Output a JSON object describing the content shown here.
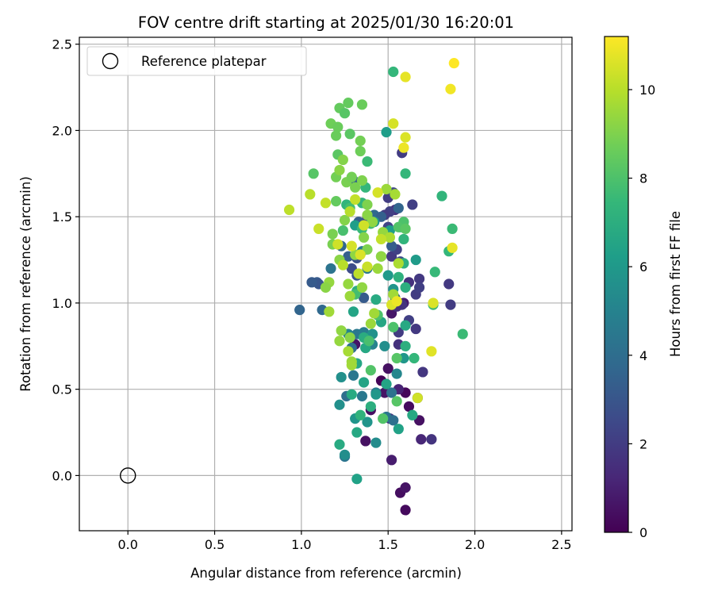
{
  "chart_data": {
    "type": "scatter",
    "title": "FOV centre drift starting at 2025/01/30 16:20:01",
    "xlabel": "Angular distance from reference (arcmin)",
    "ylabel": "Rotation from reference (arcmin)",
    "xlim": [
      -0.28,
      2.56
    ],
    "ylim": [
      -0.32,
      2.54
    ],
    "xticks": [
      "0.0",
      "0.5",
      "1.0",
      "1.5",
      "2.0",
      "2.5"
    ],
    "yticks": [
      "0.0",
      "0.5",
      "1.0",
      "1.5",
      "2.0",
      "2.5"
    ],
    "grid": true,
    "legend": {
      "placement": "upper-left",
      "entries": [
        "Reference platepar"
      ]
    },
    "reference_point": {
      "x": 0.0,
      "y": 0.0
    },
    "colorbar": {
      "label": "Hours from first FF file",
      "min": 0,
      "max": 11.2,
      "ticks": [
        "0",
        "2",
        "4",
        "6",
        "8",
        "10"
      ],
      "colormap": [
        "#440154",
        "#482878",
        "#3e4989",
        "#31688e",
        "#26828e",
        "#1f9e89",
        "#35b779",
        "#6ece58",
        "#b5de2b",
        "#fde725"
      ]
    },
    "points": [
      [
        1.6,
        -0.2,
        0.3
      ],
      [
        1.57,
        -0.1,
        0.4
      ],
      [
        1.6,
        -0.07,
        0.6
      ],
      [
        1.52,
        0.09,
        0.9
      ],
      [
        1.37,
        0.2,
        0.5
      ],
      [
        1.6,
        0.48,
        0.2
      ],
      [
        1.48,
        0.48,
        0.6
      ],
      [
        1.46,
        0.55,
        0.1
      ],
      [
        1.62,
        0.4,
        0.3
      ],
      [
        1.68,
        0.32,
        0.5
      ],
      [
        1.4,
        0.38,
        0.4
      ],
      [
        1.56,
        0.5,
        1.1
      ],
      [
        1.5,
        0.62,
        0.5
      ],
      [
        1.52,
        0.94,
        0.7
      ],
      [
        1.59,
        1.0,
        0.9
      ],
      [
        1.67,
        0.45,
        0.8
      ],
      [
        1.31,
        0.76,
        0.6
      ],
      [
        1.56,
        0.76,
        1.6
      ],
      [
        1.69,
        0.21,
        1.2
      ],
      [
        1.75,
        0.21,
        1.7
      ],
      [
        1.51,
        0.33,
        1.9
      ],
      [
        1.56,
        0.83,
        2.0
      ],
      [
        1.62,
        0.9,
        2.1
      ],
      [
        1.58,
        0.99,
        1.7
      ],
      [
        1.66,
        1.05,
        2.0
      ],
      [
        1.62,
        1.12,
        1.6
      ],
      [
        1.68,
        1.14,
        1.9
      ],
      [
        1.7,
        0.6,
        1.8
      ],
      [
        1.66,
        0.85,
        1.9
      ],
      [
        1.55,
        0.98,
        1.5
      ],
      [
        1.52,
        1.27,
        1.9
      ],
      [
        1.55,
        1.31,
        2.2
      ],
      [
        1.5,
        1.61,
        2.0
      ],
      [
        1.54,
        1.54,
        1.6
      ],
      [
        1.51,
        1.53,
        2.1
      ],
      [
        1.48,
        1.51,
        2.0
      ],
      [
        1.58,
        1.87,
        2.0
      ],
      [
        1.53,
        1.64,
        2.4
      ],
      [
        1.64,
        1.57,
        2.1
      ],
      [
        1.68,
        1.09,
        2.1
      ],
      [
        1.85,
        1.11,
        1.9
      ],
      [
        1.86,
        0.99,
        2.0
      ],
      [
        1.38,
        1.49,
        2.1
      ],
      [
        1.5,
        1.44,
        2.3
      ],
      [
        1.57,
        1.24,
        2.5
      ],
      [
        1.09,
        1.12,
        3.2
      ],
      [
        1.1,
        1.11,
        3.0
      ],
      [
        1.06,
        1.12,
        3.2
      ],
      [
        0.99,
        0.96,
        3.6
      ],
      [
        1.12,
        0.96,
        3.8
      ],
      [
        1.29,
        1.2,
        2.6
      ],
      [
        1.32,
        1.26,
        2.8
      ],
      [
        1.32,
        1.16,
        3.0
      ],
      [
        1.36,
        1.03,
        3.2
      ],
      [
        1.3,
        1.71,
        3.5
      ],
      [
        1.23,
        1.33,
        3.7
      ],
      [
        1.27,
        1.27,
        3.4
      ],
      [
        1.52,
        1.33,
        3.3
      ],
      [
        1.33,
        1.47,
        3.2
      ],
      [
        1.56,
        1.55,
        3.6
      ],
      [
        1.42,
        1.51,
        3.8
      ],
      [
        1.46,
        1.5,
        3.4
      ],
      [
        1.54,
        1.03,
        3.8
      ],
      [
        1.26,
        0.46,
        4.0
      ],
      [
        1.52,
        0.48,
        4.2
      ],
      [
        1.49,
        0.34,
        4.4
      ],
      [
        1.43,
        0.48,
        4.6
      ],
      [
        1.35,
        0.46,
        4.5
      ],
      [
        1.53,
        0.32,
        4.1
      ],
      [
        1.3,
        0.58,
        4.4
      ],
      [
        1.25,
        0.11,
        4.3
      ],
      [
        1.32,
        0.82,
        4.5
      ],
      [
        1.36,
        0.83,
        4.7
      ],
      [
        1.29,
        0.74,
        4.0
      ],
      [
        1.38,
        1.2,
        4.6
      ],
      [
        1.35,
        1.3,
        4.7
      ],
      [
        1.17,
        1.2,
        4.3
      ],
      [
        1.41,
        0.76,
        5.0
      ],
      [
        1.55,
        0.59,
        5.2
      ],
      [
        1.27,
        0.82,
        5.0
      ],
      [
        1.37,
        0.74,
        5.3
      ],
      [
        1.23,
        0.57,
        5.6
      ],
      [
        1.31,
        0.33,
        5.8
      ],
      [
        1.22,
        0.41,
        5.6
      ],
      [
        1.43,
        0.19,
        5.4
      ],
      [
        1.25,
        0.12,
        5.5
      ],
      [
        1.38,
        0.31,
        5.8
      ],
      [
        1.48,
        0.75,
        5.5
      ],
      [
        1.59,
        0.68,
        5.9
      ],
      [
        1.41,
        0.82,
        5.7
      ],
      [
        1.43,
        0.47,
        5.9
      ],
      [
        1.5,
        1.16,
        6.0
      ],
      [
        1.66,
        1.25,
        6.1
      ],
      [
        1.51,
        1.42,
        6.2
      ],
      [
        1.53,
        1.08,
        5.8
      ],
      [
        1.42,
        1.47,
        6.0
      ],
      [
        1.31,
        1.45,
        6.2
      ],
      [
        1.49,
        1.99,
        6.2
      ],
      [
        1.32,
        -0.02,
        6.4
      ],
      [
        1.56,
        0.27,
        6.4
      ],
      [
        1.64,
        0.35,
        6.7
      ],
      [
        1.22,
        0.18,
        6.8
      ],
      [
        1.4,
        0.4,
        7.0
      ],
      [
        1.32,
        0.25,
        6.7
      ],
      [
        1.34,
        0.35,
        7.2
      ],
      [
        1.29,
        0.47,
        6.8
      ],
      [
        1.36,
        0.54,
        6.5
      ],
      [
        1.49,
        0.53,
        6.5
      ],
      [
        1.32,
        0.65,
        6.6
      ],
      [
        1.36,
        0.8,
        6.9
      ],
      [
        1.3,
        0.95,
        6.5
      ],
      [
        1.37,
        0.74,
        6.7
      ],
      [
        1.46,
        0.89,
        6.6
      ],
      [
        1.6,
        0.87,
        6.7
      ],
      [
        1.43,
        1.02,
        6.8
      ],
      [
        1.32,
        1.07,
        6.9
      ],
      [
        1.56,
        1.15,
        7.1
      ],
      [
        1.6,
        1.09,
        7.0
      ],
      [
        1.59,
        1.23,
        7.1
      ],
      [
        1.57,
        1.44,
        7.1
      ],
      [
        1.59,
        1.37,
        7.3
      ],
      [
        1.53,
        2.34,
        7.4
      ],
      [
        1.6,
        1.75,
        7.4
      ],
      [
        1.81,
        1.62,
        7.3
      ],
      [
        1.77,
        1.18,
        7.5
      ],
      [
        1.85,
        1.3,
        7.4
      ],
      [
        1.87,
        1.43,
        7.6
      ],
      [
        1.76,
        0.99,
        7.6
      ],
      [
        1.93,
        0.82,
        7.6
      ],
      [
        1.6,
        0.75,
        7.0
      ],
      [
        1.65,
        0.68,
        7.4
      ],
      [
        1.26,
        1.57,
        7.3
      ],
      [
        1.35,
        1.58,
        7.3
      ],
      [
        1.37,
        1.67,
        7.4
      ],
      [
        1.38,
        1.82,
        7.6
      ],
      [
        1.4,
        1.46,
        7.7
      ],
      [
        1.28,
        1.55,
        7.8
      ],
      [
        1.35,
        1.43,
        7.5
      ],
      [
        1.24,
        1.42,
        7.9
      ],
      [
        1.46,
        1.27,
        7.8
      ],
      [
        1.31,
        1.05,
        7.8
      ],
      [
        1.39,
        0.78,
        7.9
      ],
      [
        1.44,
        0.93,
        8.0
      ],
      [
        1.53,
        0.86,
        8.0
      ],
      [
        1.4,
        0.61,
        8.1
      ],
      [
        1.55,
        0.43,
        8.2
      ],
      [
        1.47,
        0.33,
        8.1
      ],
      [
        1.55,
        0.68,
        8.2
      ],
      [
        1.59,
        1.47,
        8.0
      ],
      [
        1.56,
        1.44,
        8.1
      ],
      [
        1.6,
        1.43,
        8.3
      ],
      [
        1.07,
        1.75,
        8.2
      ],
      [
        1.2,
        1.59,
        8.5
      ],
      [
        1.21,
        1.86,
        8.3
      ],
      [
        1.22,
        2.13,
        8.5
      ],
      [
        1.25,
        2.1,
        8.2
      ],
      [
        1.27,
        2.16,
        8.5
      ],
      [
        1.35,
        2.15,
        8.6
      ],
      [
        1.28,
        1.98,
        8.3
      ],
      [
        1.34,
        1.88,
        8.7
      ],
      [
        1.34,
        1.94,
        8.8
      ],
      [
        1.17,
        2.04,
        8.7
      ],
      [
        1.21,
        2.02,
        8.6
      ],
      [
        1.2,
        1.97,
        8.6
      ],
      [
        1.2,
        1.73,
        8.8
      ],
      [
        1.26,
        1.7,
        8.9
      ],
      [
        1.29,
        1.73,
        8.8
      ],
      [
        1.31,
        1.67,
        8.9
      ],
      [
        1.35,
        1.71,
        9.0
      ],
      [
        1.38,
        1.57,
        9.0
      ],
      [
        1.38,
        1.51,
        9.2
      ],
      [
        1.41,
        1.47,
        9.3
      ],
      [
        1.24,
        1.83,
        9.1
      ],
      [
        1.22,
        1.77,
        9.2
      ],
      [
        1.25,
        1.48,
        9.1
      ],
      [
        1.18,
        1.4,
        8.9
      ],
      [
        1.18,
        1.34,
        8.9
      ],
      [
        1.22,
        1.25,
        9.2
      ],
      [
        1.31,
        1.28,
        9.3
      ],
      [
        1.36,
        1.38,
        9.1
      ],
      [
        1.38,
        1.31,
        9.0
      ],
      [
        1.47,
        1.41,
        9.4
      ],
      [
        1.46,
        1.27,
        9.3
      ],
      [
        1.44,
        1.2,
        9.5
      ],
      [
        1.35,
        1.09,
        9.3
      ],
      [
        1.27,
        1.11,
        9.4
      ],
      [
        1.28,
        1.04,
        9.5
      ],
      [
        1.16,
        1.12,
        9.4
      ],
      [
        1.14,
        1.09,
        9.2
      ],
      [
        1.16,
        0.95,
        9.6
      ],
      [
        1.23,
        0.84,
        9.3
      ],
      [
        1.28,
        0.8,
        9.2
      ],
      [
        1.22,
        0.78,
        9.4
      ],
      [
        1.27,
        0.72,
        9.7
      ],
      [
        1.29,
        0.66,
        9.5
      ],
      [
        1.29,
        0.64,
        9.6
      ],
      [
        1.42,
        0.94,
        9.6
      ],
      [
        1.4,
        0.88,
        9.5
      ],
      [
        1.56,
        1.23,
        9.8
      ],
      [
        1.49,
        1.66,
        9.5
      ],
      [
        1.54,
        1.63,
        9.7
      ],
      [
        1.51,
        1.38,
        9.8
      ],
      [
        1.53,
        1.05,
        9.6
      ],
      [
        0.93,
        1.54,
        10.1
      ],
      [
        1.05,
        1.63,
        10.0
      ],
      [
        1.1,
        1.43,
        10.3
      ],
      [
        1.21,
        1.34,
        10.4
      ],
      [
        1.14,
        1.58,
        10.2
      ],
      [
        1.28,
        1.53,
        10.0
      ],
      [
        1.31,
        1.6,
        10.2
      ],
      [
        1.36,
        1.45,
        10.4
      ],
      [
        1.44,
        1.64,
        10.5
      ],
      [
        1.53,
        2.04,
        10.5
      ],
      [
        1.6,
        1.96,
        10.6
      ],
      [
        1.59,
        1.9,
        10.9
      ],
      [
        1.6,
        2.31,
        10.8
      ],
      [
        1.86,
        2.24,
        11.0
      ],
      [
        1.88,
        2.39,
        11.2
      ],
      [
        1.87,
        1.32,
        10.8
      ],
      [
        1.76,
        1.0,
        10.6
      ],
      [
        1.75,
        0.72,
        10.7
      ],
      [
        1.52,
        0.99,
        10.6
      ],
      [
        1.55,
        1.01,
        10.9
      ],
      [
        1.34,
        1.28,
        10.6
      ],
      [
        1.67,
        0.45,
        10.4
      ],
      [
        1.46,
        1.37,
        10.2
      ],
      [
        1.38,
        1.21,
        10.3
      ],
      [
        1.33,
        1.17,
        10.1
      ],
      [
        1.29,
        1.33,
        10.5
      ],
      [
        1.24,
        1.22,
        10.0
      ]
    ]
  }
}
